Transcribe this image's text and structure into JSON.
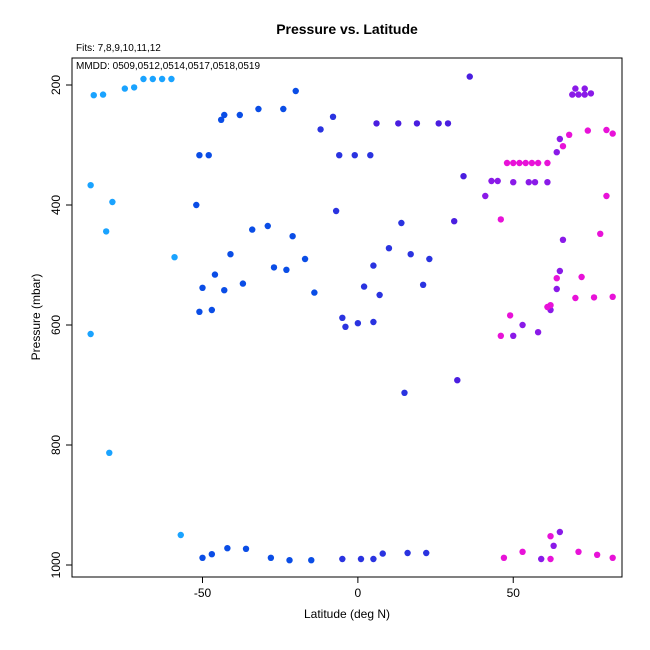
{
  "chart_data": {
    "type": "scatter",
    "title": "Pressure vs. Latitude",
    "subtitle": "Fits: 7,8,9,10,11,12",
    "annotation": "MMDD: 0509,0512,0514,0517,0518,0519",
    "xlabel": "Latitude (deg N)",
    "ylabel": "Pressure (mbar)",
    "xlim": [
      -92,
      85
    ],
    "ylim": [
      1020,
      155
    ],
    "y_reversed": true,
    "x_ticks": [
      -50,
      0,
      50
    ],
    "y_ticks": [
      200,
      400,
      600,
      800,
      1000
    ],
    "grid": false,
    "legend": "none",
    "colors": {
      "c1": "#1aa3ff",
      "c2": "#0a4de6",
      "c3": "#2a33e0",
      "c4": "#4a1ee0",
      "c5": "#8a1ae8",
      "c6": "#e812d8"
    },
    "series": [
      {
        "color_key": "c1",
        "points": [
          [
            -85,
            217
          ],
          [
            -82,
            216
          ],
          [
            -75,
            206
          ],
          [
            -72,
            204
          ],
          [
            -69,
            190
          ],
          [
            -66,
            190
          ],
          [
            -63,
            190
          ],
          [
            -60,
            190
          ],
          [
            -86,
            367
          ],
          [
            -79,
            395
          ],
          [
            -81,
            444
          ],
          [
            -59,
            487
          ],
          [
            -86,
            615
          ],
          [
            -80,
            813
          ],
          [
            -57,
            950
          ]
        ]
      },
      {
        "color_key": "c2",
        "points": [
          [
            -20,
            210
          ],
          [
            -24,
            240
          ],
          [
            -32,
            240
          ],
          [
            -38,
            250
          ],
          [
            -43,
            250
          ],
          [
            -44,
            258
          ],
          [
            -51,
            317
          ],
          [
            -48,
            317
          ],
          [
            -52,
            400
          ],
          [
            -29,
            435
          ],
          [
            -34,
            441
          ],
          [
            -21,
            452
          ],
          [
            -41,
            482
          ],
          [
            -17,
            490
          ],
          [
            -37,
            531
          ],
          [
            -27,
            504
          ],
          [
            -23,
            508
          ],
          [
            -46,
            516
          ],
          [
            -50,
            538
          ],
          [
            -43,
            542
          ],
          [
            -14,
            546
          ],
          [
            -47,
            575
          ],
          [
            -51,
            578
          ],
          [
            -50,
            988
          ],
          [
            -47,
            982
          ],
          [
            -42,
            972
          ],
          [
            -36,
            973
          ],
          [
            -28,
            988
          ],
          [
            -22,
            992
          ],
          [
            -15,
            992
          ]
        ]
      },
      {
        "color_key": "c3",
        "points": [
          [
            -8,
            253
          ],
          [
            -12,
            274
          ],
          [
            -6,
            317
          ],
          [
            -1,
            317
          ],
          [
            4,
            317
          ],
          [
            -7,
            410
          ],
          [
            5,
            501
          ],
          [
            2,
            536
          ],
          [
            7,
            550
          ],
          [
            -5,
            588
          ],
          [
            -4,
            603
          ],
          [
            0,
            597
          ],
          [
            5,
            595
          ],
          [
            10,
            472
          ],
          [
            14,
            430
          ],
          [
            17,
            482
          ],
          [
            21,
            533
          ],
          [
            23,
            490
          ],
          [
            15,
            713
          ],
          [
            -5,
            990
          ],
          [
            1,
            990
          ],
          [
            5,
            990
          ],
          [
            8,
            981
          ],
          [
            16,
            980
          ],
          [
            22,
            980
          ]
        ]
      },
      {
        "color_key": "c4",
        "points": [
          [
            36,
            186
          ],
          [
            6,
            264
          ],
          [
            13,
            264
          ],
          [
            19,
            264
          ],
          [
            26,
            264
          ],
          [
            29,
            264
          ],
          [
            34,
            352
          ],
          [
            31,
            427
          ],
          [
            32,
            692
          ]
        ]
      },
      {
        "color_key": "c5",
        "points": [
          [
            70,
            206
          ],
          [
            73,
            206
          ],
          [
            69,
            216
          ],
          [
            71,
            216
          ],
          [
            73,
            216
          ],
          [
            75,
            214
          ],
          [
            64,
            312
          ],
          [
            65,
            290
          ],
          [
            41,
            385
          ],
          [
            43,
            360
          ],
          [
            45,
            360
          ],
          [
            50,
            362
          ],
          [
            55,
            362
          ],
          [
            57,
            362
          ],
          [
            61,
            362
          ],
          [
            66,
            458
          ],
          [
            65,
            510
          ],
          [
            64,
            540
          ],
          [
            62,
            575
          ],
          [
            58,
            612
          ],
          [
            50,
            618
          ],
          [
            53,
            600
          ],
          [
            63,
            968
          ],
          [
            65,
            945
          ],
          [
            59,
            990
          ]
        ]
      },
      {
        "color_key": "c6",
        "points": [
          [
            66,
            302
          ],
          [
            68,
            283
          ],
          [
            74,
            276
          ],
          [
            80,
            275
          ],
          [
            82,
            281
          ],
          [
            48,
            330
          ],
          [
            50,
            330
          ],
          [
            52,
            330
          ],
          [
            54,
            330
          ],
          [
            56,
            330
          ],
          [
            58,
            330
          ],
          [
            61,
            330
          ],
          [
            46,
            424
          ],
          [
            80,
            385
          ],
          [
            78,
            448
          ],
          [
            64,
            522
          ],
          [
            72,
            520
          ],
          [
            70,
            555
          ],
          [
            76,
            554
          ],
          [
            82,
            553
          ],
          [
            62,
            567
          ],
          [
            61,
            570
          ],
          [
            49,
            584
          ],
          [
            46,
            618
          ],
          [
            62,
            952
          ],
          [
            53,
            978
          ],
          [
            71,
            978
          ],
          [
            77,
            983
          ],
          [
            82,
            988
          ],
          [
            47,
            988
          ],
          [
            62,
            990
          ]
        ]
      }
    ]
  }
}
